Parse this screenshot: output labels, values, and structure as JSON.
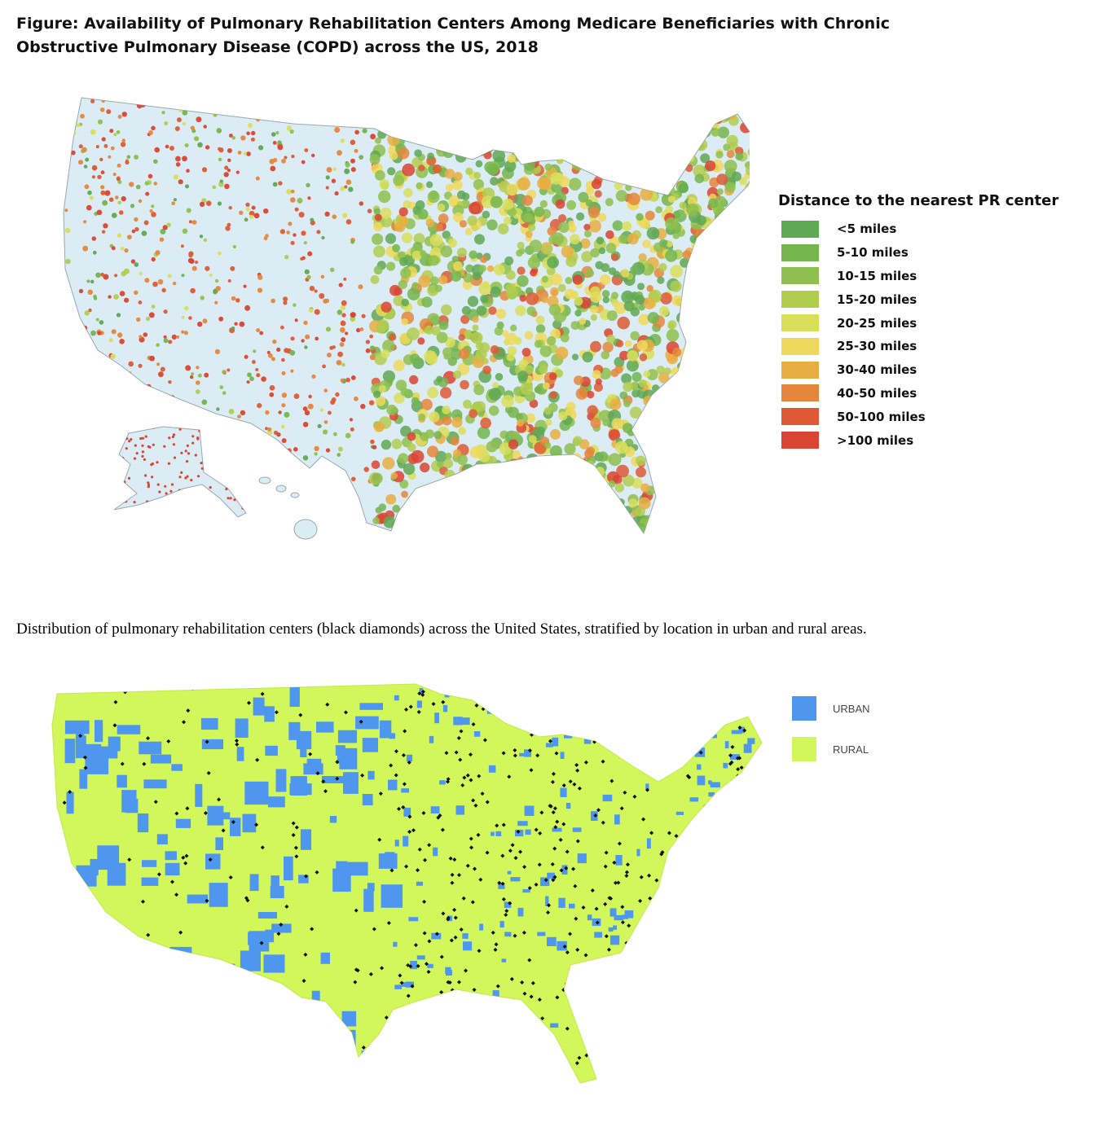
{
  "title": "Figure: Availability of Pulmonary Rehabilitation Centers Among Medicare Beneficiaries with Chronic Obstructive Pulmonary Disease (COPD) across the US, 2018",
  "top_map": {
    "legend_title": "Distance to the nearest PR center",
    "legend": [
      {
        "label": "<5 miles",
        "color": "#5fa854"
      },
      {
        "label": "5-10 miles",
        "color": "#74b54e"
      },
      {
        "label": "10-15 miles",
        "color": "#8fc04f"
      },
      {
        "label": "15-20 miles",
        "color": "#b1cd4f"
      },
      {
        "label": "20-25 miles",
        "color": "#d9de5b"
      },
      {
        "label": "25-30 miles",
        "color": "#efd95c"
      },
      {
        "label": "30-40 miles",
        "color": "#e9ae43"
      },
      {
        "label": "40-50 miles",
        "color": "#e4873c"
      },
      {
        "label": "50-100 miles",
        "color": "#dd5a35"
      },
      {
        "label": ">100 miles",
        "color": "#d94433"
      }
    ],
    "land_color": "#dcecf5"
  },
  "caption": "Distribution of pulmonary rehabilitation centers (black diamonds) across the United States, stratified by location in urban and rural areas.",
  "bottom_map": {
    "legend": [
      {
        "label": "URBAN",
        "color": "#4f97ee"
      },
      {
        "label": "RURAL",
        "color": "#d2f75a"
      }
    ],
    "center_marker_color": "#111111"
  }
}
